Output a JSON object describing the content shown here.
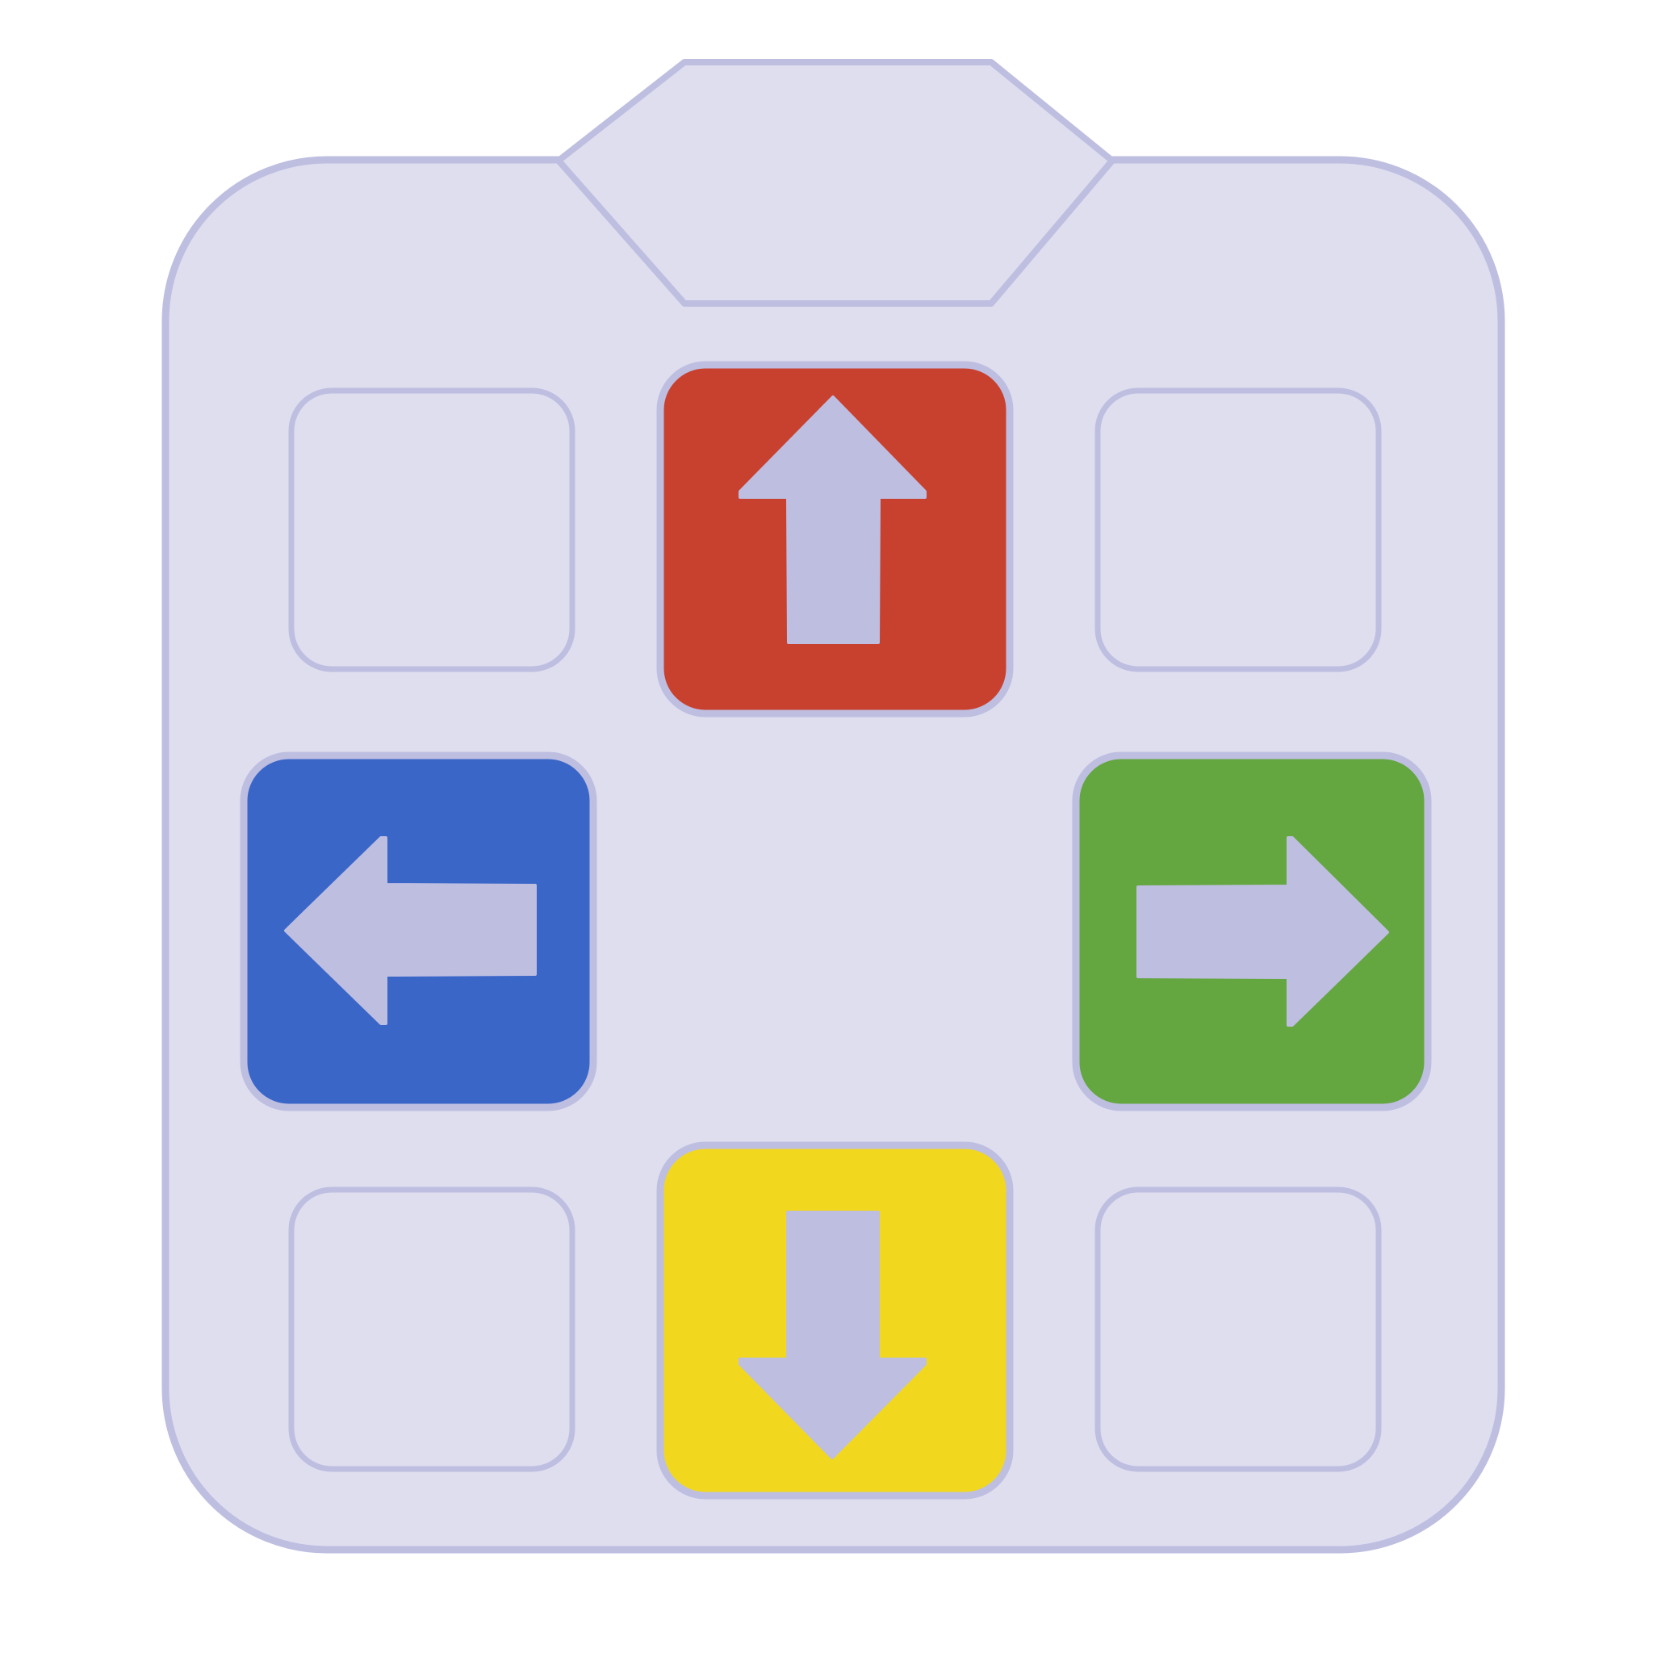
{
  "dance_pad": {
    "colors": {
      "body_fill": "#DFDEEF",
      "outline": "#BEBEE1",
      "arrow_glyph": "#BEBEE1"
    },
    "arrows": {
      "up": {
        "icon": "arrow-up-icon",
        "color": "#C8412F"
      },
      "left": {
        "icon": "arrow-left-icon",
        "color": "#3A66C8"
      },
      "right": {
        "icon": "arrow-right-icon",
        "color": "#64A640"
      },
      "down": {
        "icon": "arrow-down-icon",
        "color": "#F1D81E"
      }
    }
  }
}
